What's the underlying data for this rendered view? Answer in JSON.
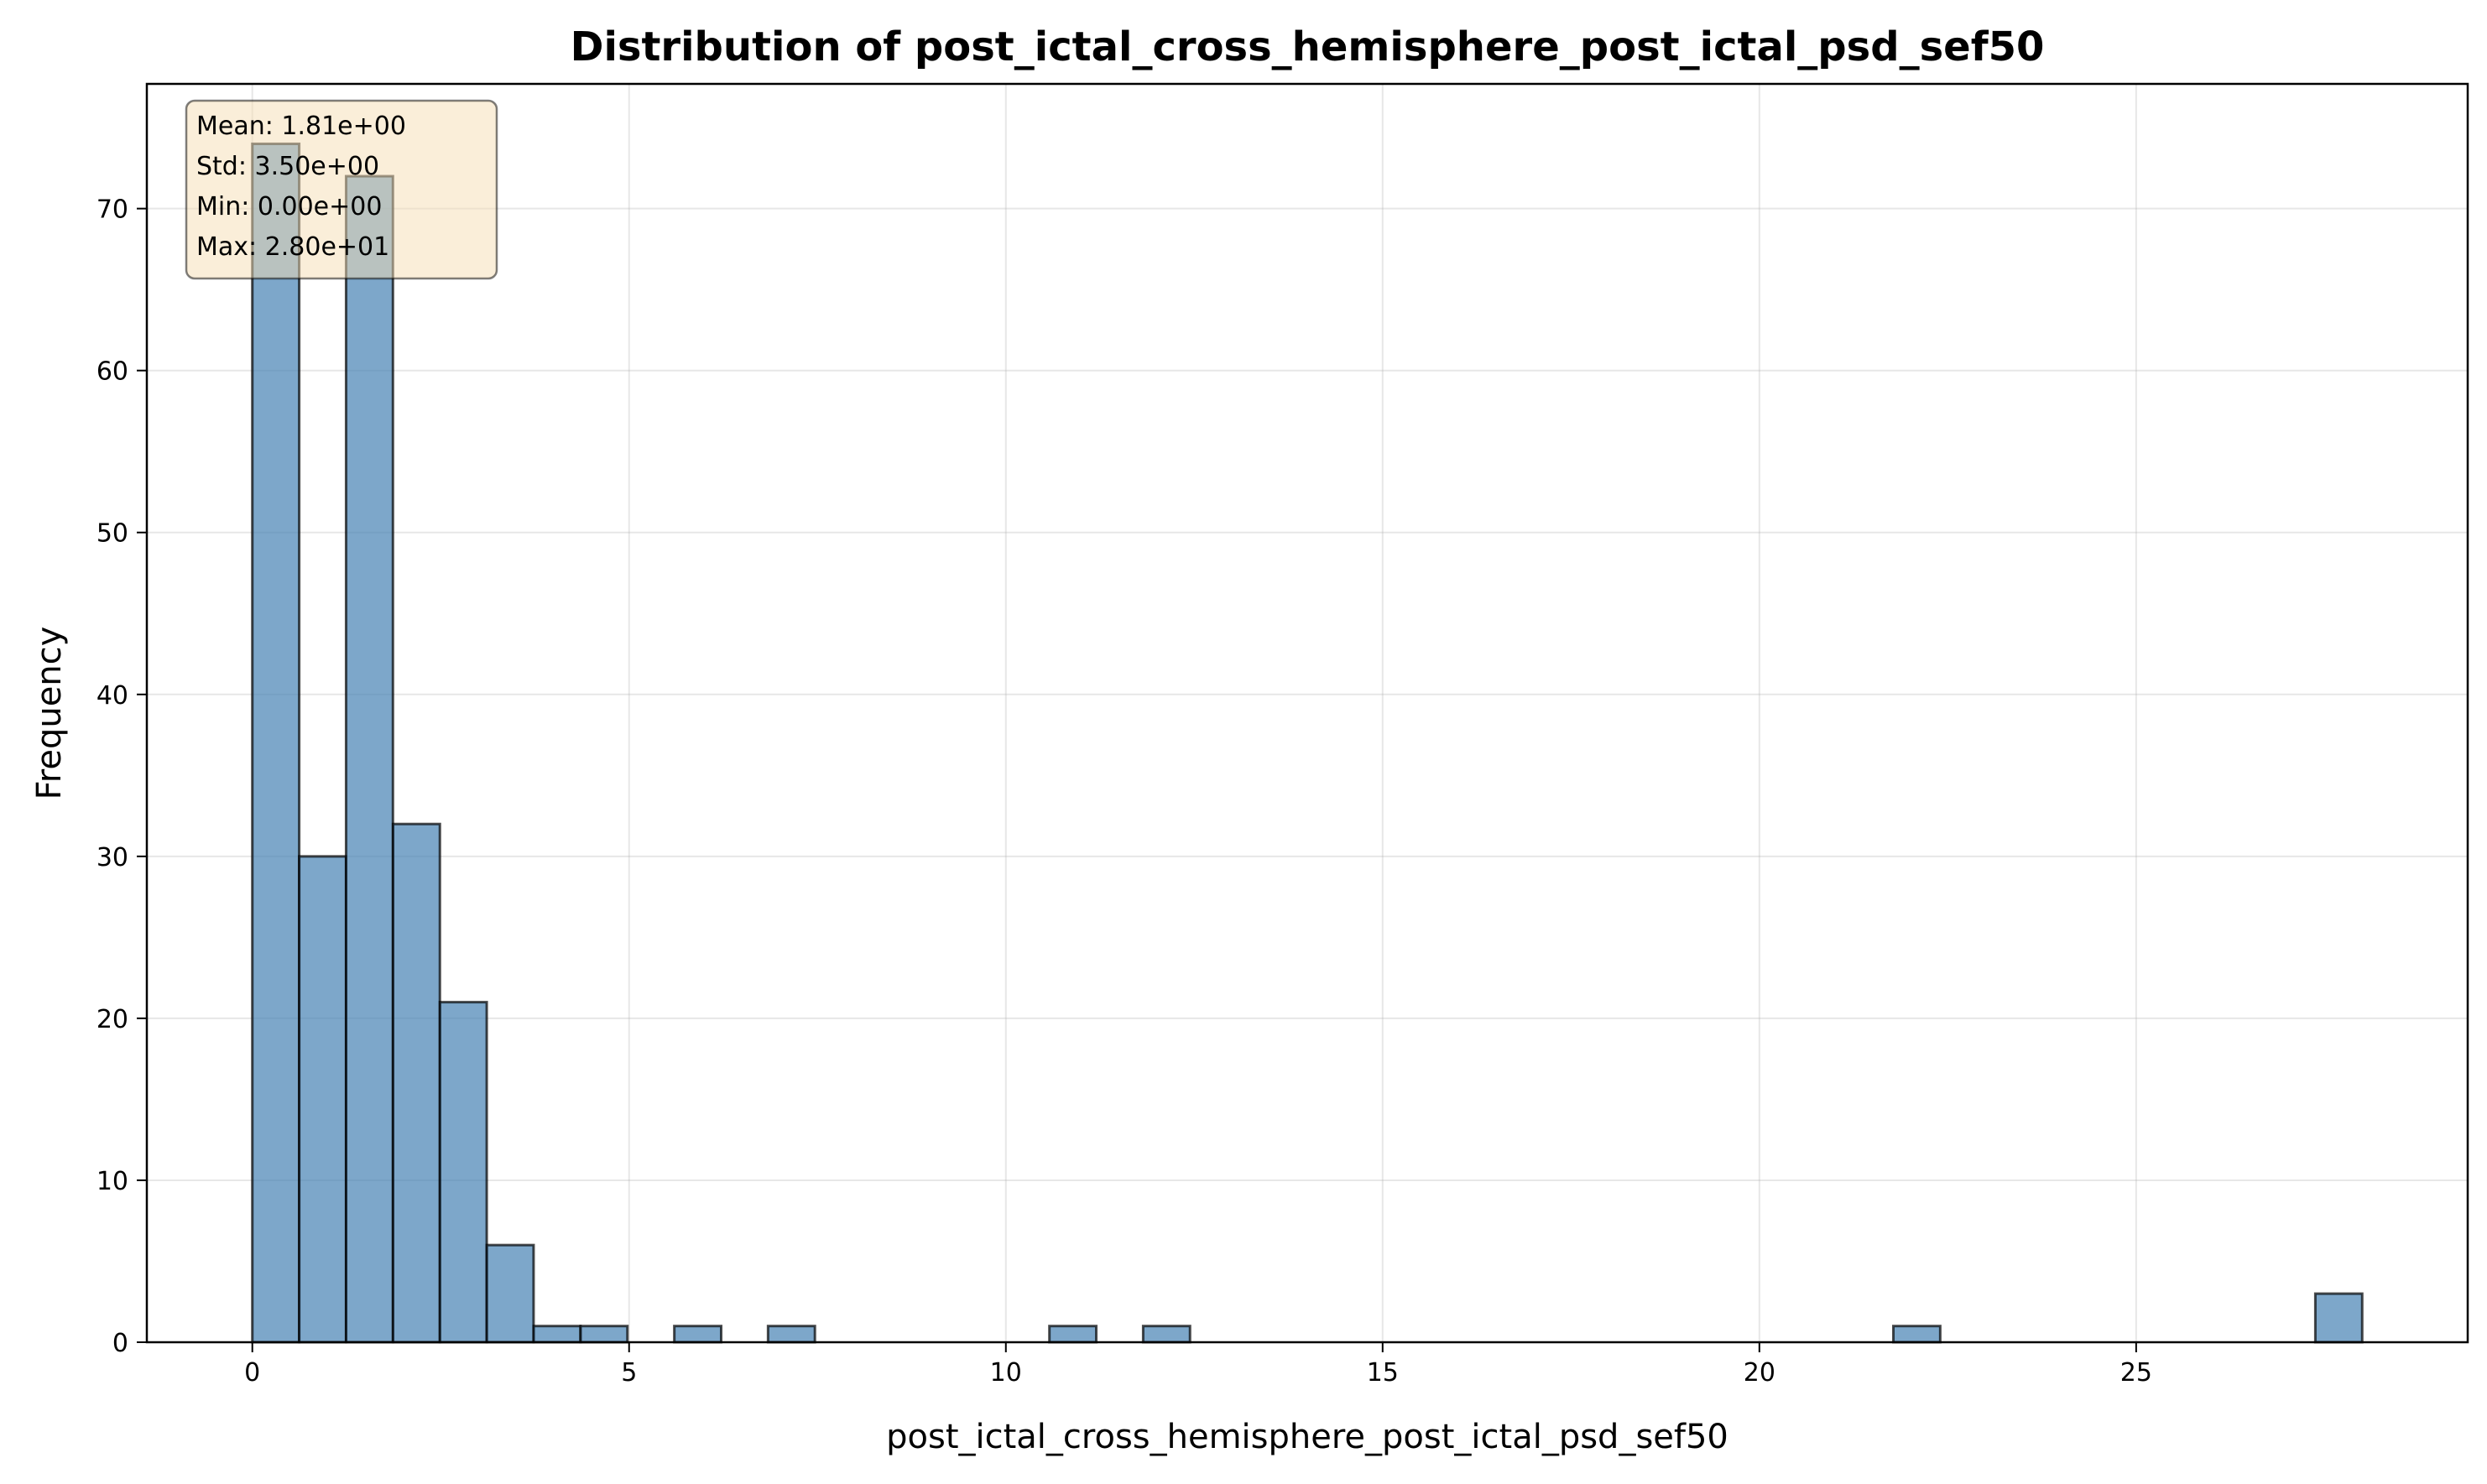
{
  "chart_data": {
    "type": "bar",
    "title": "Distribution of post_ictal_cross_hemisphere_post_ictal_psd_sef50",
    "xlabel": "post_ictal_cross_hemisphere_post_ictal_psd_sef50",
    "ylabel": "Frequency",
    "xlim": [
      -1.4,
      29.4
    ],
    "ylim": [
      0,
      77.7
    ],
    "xticks": [
      0,
      5,
      10,
      15,
      20,
      25
    ],
    "yticks": [
      0,
      10,
      20,
      30,
      40,
      50,
      60,
      70
    ],
    "grid": true,
    "bin_width": 0.622,
    "bins": [
      {
        "x0": 0.0,
        "count": 74
      },
      {
        "x0": 0.622,
        "count": 30
      },
      {
        "x0": 1.244,
        "count": 72
      },
      {
        "x0": 1.867,
        "count": 32
      },
      {
        "x0": 2.489,
        "count": 21
      },
      {
        "x0": 3.111,
        "count": 6
      },
      {
        "x0": 3.733,
        "count": 1
      },
      {
        "x0": 4.356,
        "count": 1
      },
      {
        "x0": 5.6,
        "count": 1
      },
      {
        "x0": 6.844,
        "count": 1
      },
      {
        "x0": 10.578,
        "count": 1
      },
      {
        "x0": 11.822,
        "count": 1
      },
      {
        "x0": 21.778,
        "count": 1
      },
      {
        "x0": 27.378,
        "count": 3
      }
    ],
    "stats_box": {
      "lines": [
        "Mean: 1.81e+00",
        "Std: 3.50e+00",
        "Min: 0.00e+00",
        "Max: 2.80e+01"
      ],
      "background": "#f5deb3",
      "placement": "top-left"
    },
    "bar_color": "#4682b4"
  }
}
